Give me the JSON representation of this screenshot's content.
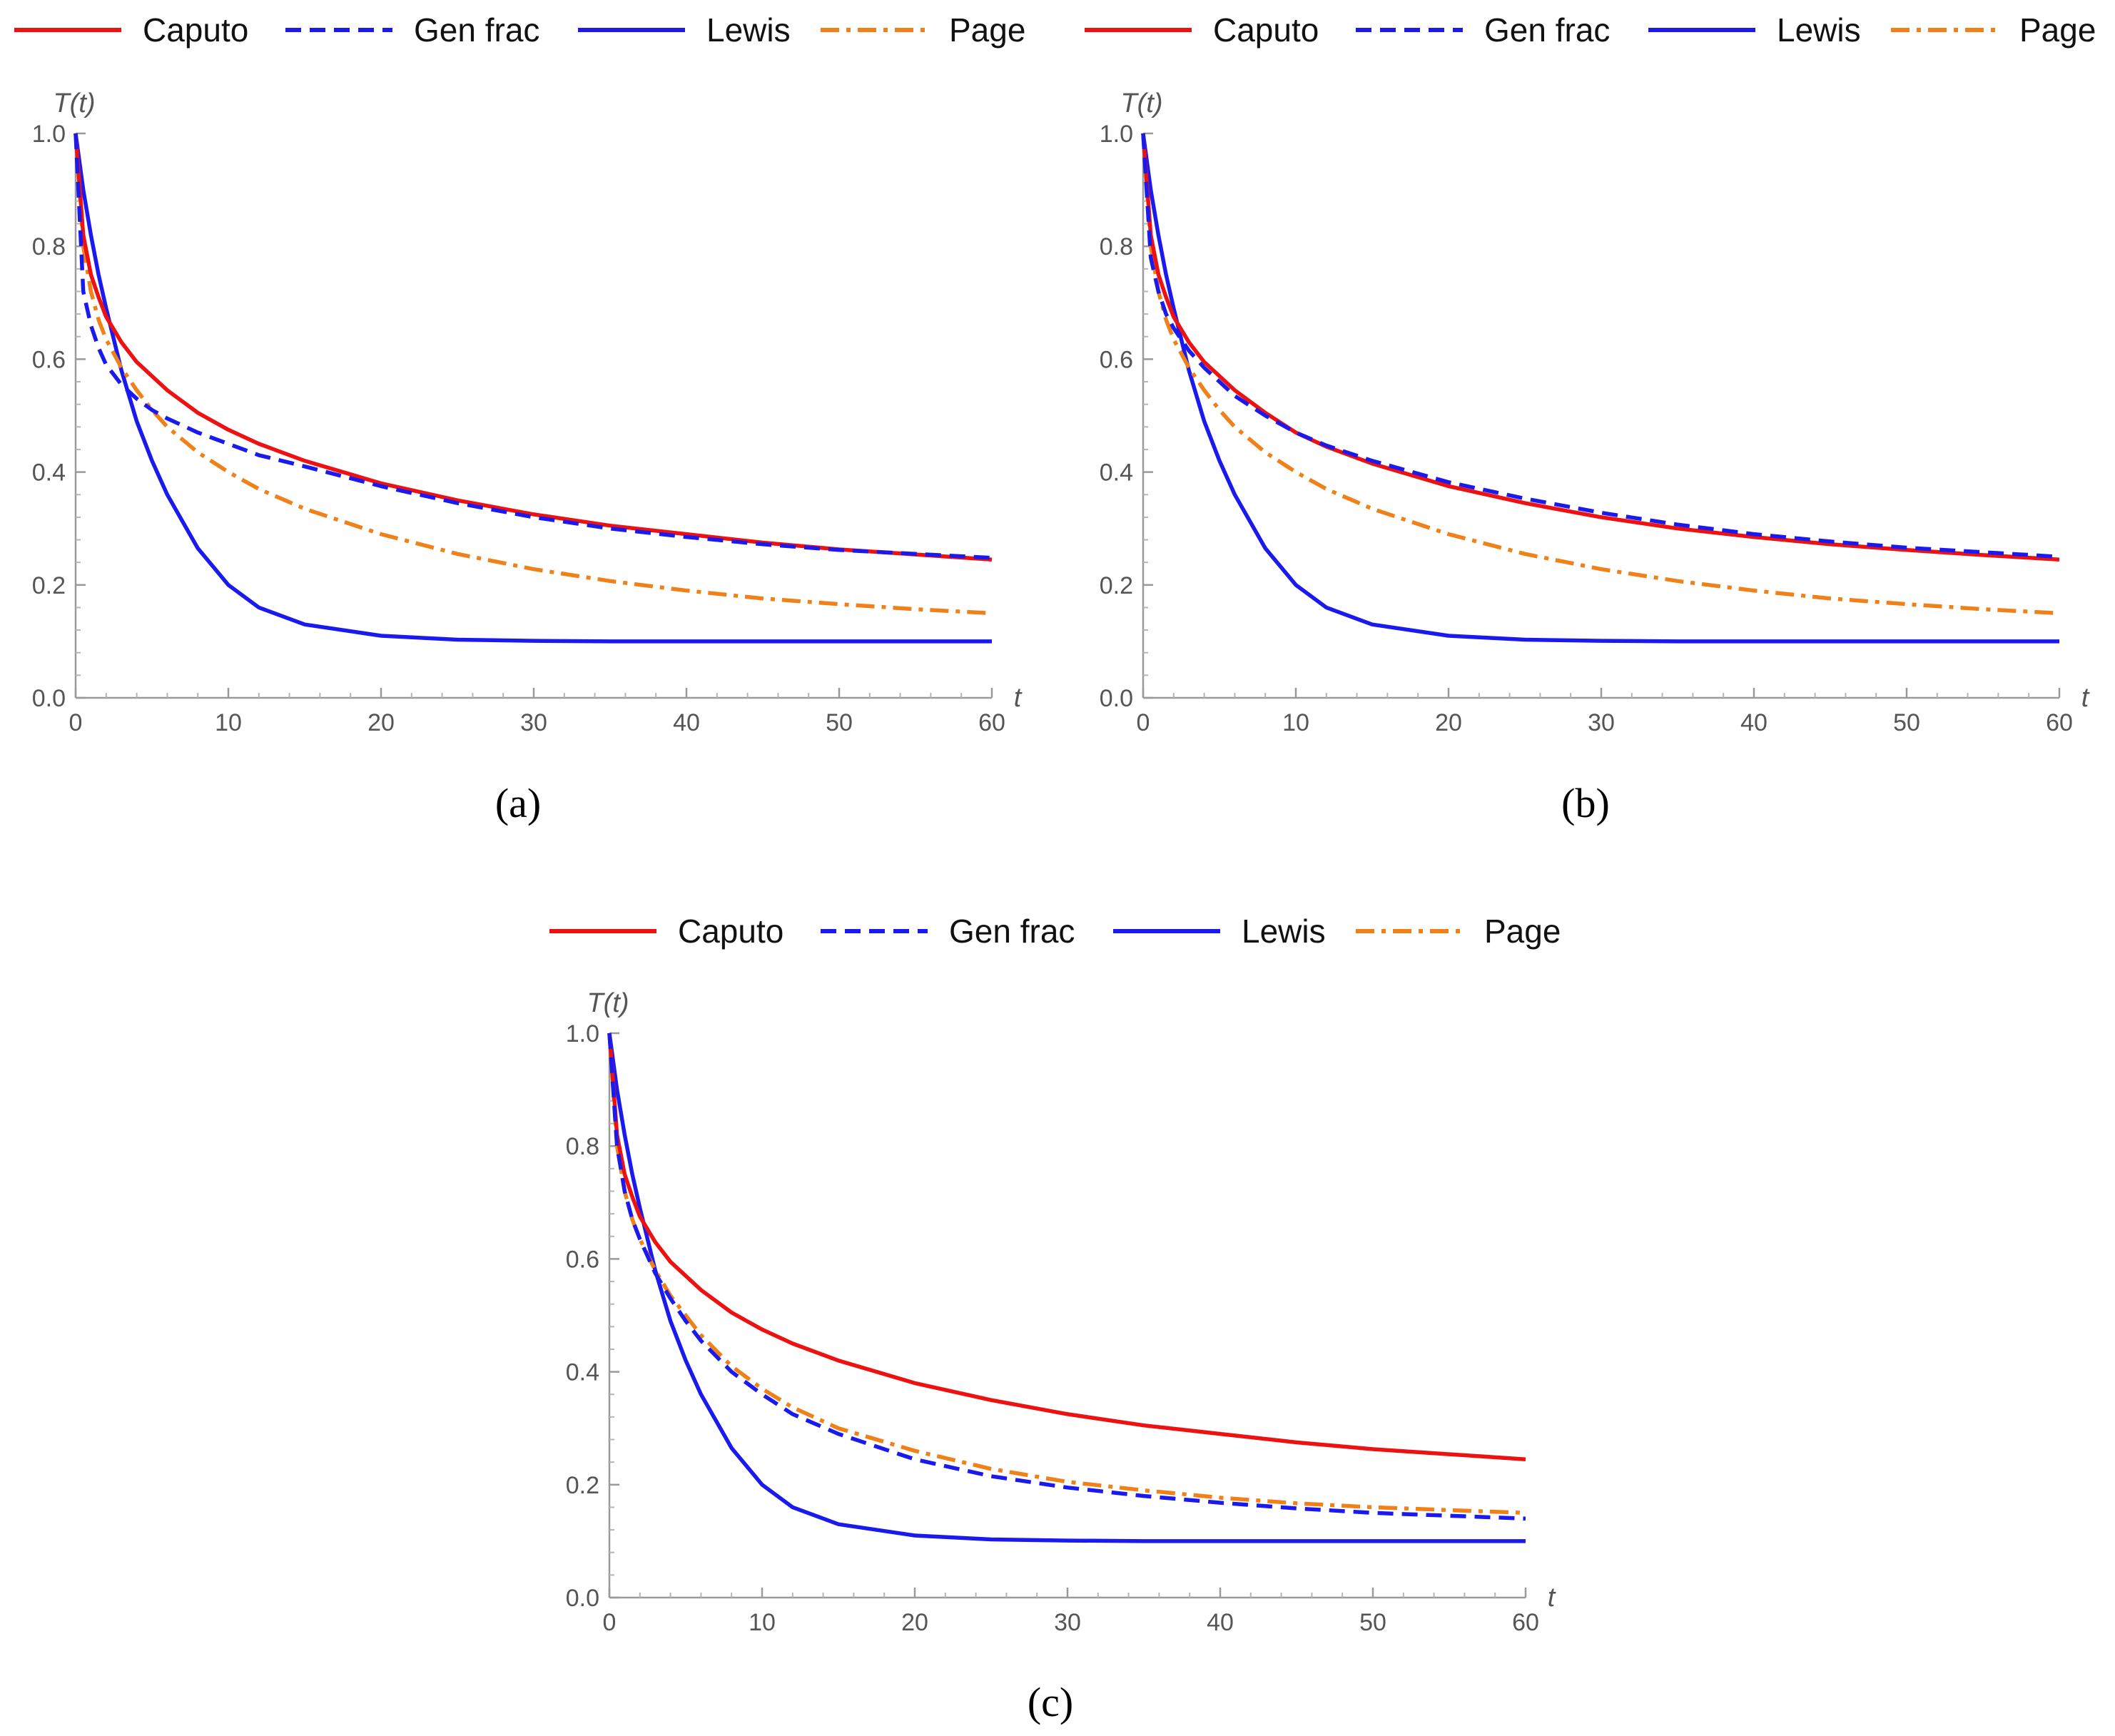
{
  "colors": {
    "caputo": "#ee1111",
    "genfrac": "#1a1aee",
    "lewis": "#1a1aee",
    "page": "#f08018",
    "axis": "#9a9a9a"
  },
  "chart_data": [
    {
      "id": "a",
      "type": "line",
      "caption": "(a)",
      "ylabel": "T(t)",
      "xlabel": "t",
      "xlim": [
        0,
        60
      ],
      "ylim": [
        0,
        1
      ],
      "xticks": [
        "0",
        "10",
        "20",
        "30",
        "40",
        "50",
        "60"
      ],
      "yticks": [
        "0.0",
        "0.2",
        "0.4",
        "0.6",
        "0.8",
        "1.0"
      ],
      "legend": [
        "Caputo",
        "Gen frac",
        "Lewis",
        "Page"
      ],
      "x": [
        0,
        0.5,
        1,
        1.5,
        2,
        3,
        4,
        5,
        6,
        8,
        10,
        12,
        15,
        20,
        25,
        30,
        35,
        40,
        45,
        50,
        55,
        60
      ],
      "series": [
        {
          "name": "Caputo",
          "style": "solid",
          "values": [
            1.0,
            0.82,
            0.75,
            0.71,
            0.675,
            0.63,
            0.595,
            0.57,
            0.545,
            0.505,
            0.475,
            0.45,
            0.42,
            0.38,
            0.35,
            0.325,
            0.305,
            0.29,
            0.275,
            0.263,
            0.254,
            0.245
          ]
        },
        {
          "name": "Gen frac",
          "style": "dashed",
          "values": [
            1.0,
            0.72,
            0.66,
            0.62,
            0.59,
            0.555,
            0.53,
            0.51,
            0.495,
            0.47,
            0.45,
            0.43,
            0.41,
            0.375,
            0.345,
            0.32,
            0.3,
            0.285,
            0.272,
            0.262,
            0.255,
            0.248
          ]
        },
        {
          "name": "Lewis",
          "style": "solid",
          "values": [
            1.0,
            0.9,
            0.82,
            0.75,
            0.69,
            0.58,
            0.49,
            0.42,
            0.36,
            0.265,
            0.2,
            0.16,
            0.13,
            0.11,
            0.103,
            0.101,
            0.1,
            0.1,
            0.1,
            0.1,
            0.1,
            0.1
          ]
        },
        {
          "name": "Page",
          "style": "dashdot",
          "values": [
            1.0,
            0.8,
            0.72,
            0.67,
            0.635,
            0.585,
            0.545,
            0.51,
            0.48,
            0.435,
            0.4,
            0.37,
            0.335,
            0.29,
            0.255,
            0.228,
            0.207,
            0.19,
            0.176,
            0.166,
            0.157,
            0.15
          ]
        }
      ]
    },
    {
      "id": "b",
      "type": "line",
      "caption": "(b)",
      "ylabel": "T(t)",
      "xlabel": "t",
      "xlim": [
        0,
        60
      ],
      "ylim": [
        0,
        1
      ],
      "xticks": [
        "0",
        "10",
        "20",
        "30",
        "40",
        "50",
        "60"
      ],
      "yticks": [
        "0.0",
        "0.2",
        "0.4",
        "0.6",
        "0.8",
        "1.0"
      ],
      "legend": [
        "Caputo",
        "Gen frac",
        "Lewis",
        "Page"
      ],
      "x": [
        0,
        0.5,
        1,
        1.5,
        2,
        3,
        4,
        5,
        6,
        8,
        10,
        12,
        15,
        20,
        25,
        30,
        35,
        40,
        45,
        50,
        55,
        60
      ],
      "series": [
        {
          "name": "Caputo",
          "style": "solid",
          "values": [
            1.0,
            0.82,
            0.75,
            0.71,
            0.675,
            0.63,
            0.595,
            0.57,
            0.545,
            0.505,
            0.47,
            0.445,
            0.415,
            0.375,
            0.345,
            0.32,
            0.3,
            0.285,
            0.272,
            0.262,
            0.253,
            0.245
          ]
        },
        {
          "name": "Gen frac",
          "style": "dashed",
          "values": [
            1.0,
            0.78,
            0.72,
            0.68,
            0.655,
            0.615,
            0.585,
            0.56,
            0.535,
            0.5,
            0.47,
            0.447,
            0.42,
            0.382,
            0.353,
            0.328,
            0.307,
            0.29,
            0.277,
            0.266,
            0.258,
            0.25
          ]
        },
        {
          "name": "Lewis",
          "style": "solid",
          "values": [
            1.0,
            0.9,
            0.82,
            0.75,
            0.69,
            0.58,
            0.49,
            0.42,
            0.36,
            0.265,
            0.2,
            0.16,
            0.13,
            0.11,
            0.103,
            0.101,
            0.1,
            0.1,
            0.1,
            0.1,
            0.1,
            0.1
          ]
        },
        {
          "name": "Page",
          "style": "dashdot",
          "values": [
            1.0,
            0.8,
            0.72,
            0.67,
            0.635,
            0.585,
            0.545,
            0.51,
            0.48,
            0.435,
            0.4,
            0.37,
            0.335,
            0.29,
            0.255,
            0.228,
            0.207,
            0.19,
            0.176,
            0.166,
            0.157,
            0.15
          ]
        }
      ]
    },
    {
      "id": "c",
      "type": "line",
      "caption": "(c)",
      "ylabel": "T(t)",
      "xlabel": "t",
      "xlim": [
        0,
        60
      ],
      "ylim": [
        0,
        1
      ],
      "xticks": [
        "0",
        "10",
        "20",
        "30",
        "40",
        "50",
        "60"
      ],
      "yticks": [
        "0.0",
        "0.2",
        "0.4",
        "0.6",
        "0.8",
        "1.0"
      ],
      "legend": [
        "Caputo",
        "Gen frac",
        "Lewis",
        "Page"
      ],
      "x": [
        0,
        0.5,
        1,
        1.5,
        2,
        3,
        4,
        5,
        6,
        8,
        10,
        12,
        15,
        20,
        25,
        30,
        35,
        40,
        45,
        50,
        55,
        60
      ],
      "series": [
        {
          "name": "Caputo",
          "style": "solid",
          "values": [
            1.0,
            0.82,
            0.75,
            0.71,
            0.675,
            0.63,
            0.595,
            0.57,
            0.545,
            0.505,
            0.475,
            0.45,
            0.42,
            0.38,
            0.35,
            0.325,
            0.305,
            0.29,
            0.275,
            0.263,
            0.254,
            0.245
          ]
        },
        {
          "name": "Gen frac",
          "style": "dashed",
          "values": [
            1.0,
            0.8,
            0.72,
            0.67,
            0.635,
            0.575,
            0.53,
            0.49,
            0.455,
            0.4,
            0.36,
            0.325,
            0.29,
            0.245,
            0.215,
            0.195,
            0.18,
            0.168,
            0.158,
            0.15,
            0.145,
            0.14
          ]
        },
        {
          "name": "Lewis",
          "style": "solid",
          "values": [
            1.0,
            0.9,
            0.82,
            0.75,
            0.69,
            0.58,
            0.49,
            0.42,
            0.36,
            0.265,
            0.2,
            0.16,
            0.13,
            0.11,
            0.103,
            0.101,
            0.1,
            0.1,
            0.1,
            0.1,
            0.1,
            0.1
          ]
        },
        {
          "name": "Page",
          "style": "dashdot",
          "values": [
            1.0,
            0.8,
            0.72,
            0.67,
            0.635,
            0.58,
            0.535,
            0.5,
            0.465,
            0.41,
            0.37,
            0.337,
            0.3,
            0.26,
            0.228,
            0.205,
            0.19,
            0.177,
            0.167,
            0.16,
            0.155,
            0.15
          ]
        }
      ]
    }
  ]
}
